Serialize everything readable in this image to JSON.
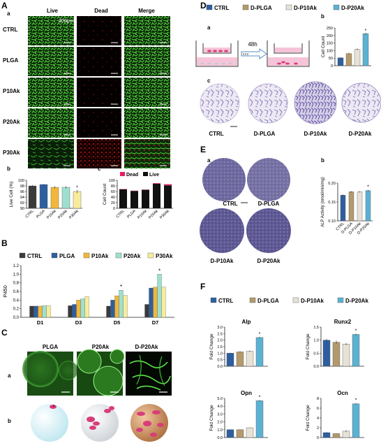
{
  "colors": {
    "ctrl": "#2d5fa0",
    "plga": "#b39a6c",
    "p10ak": "#e6e2d6",
    "p20ak": "#5bb2d3",
    "p20ak_b": "#9ee0d0",
    "p30ak": "#f7ec9c",
    "p10ak_b": "#f2b73a",
    "ctrl_b": "#3a3a3a",
    "live": "#111111",
    "dead": "#e91e63"
  },
  "panels": {
    "A": {
      "letter": "A",
      "sub_a": "a",
      "sub_b": "b",
      "sub_c": "c",
      "columns": [
        "Live",
        "Dead",
        "Merge"
      ],
      "rows": [
        "CTRL",
        "PLGA",
        "P10Ak",
        "P20Ak",
        "P30Ak"
      ],
      "scale_label": "200μm"
    },
    "B": {
      "letter": "B"
    },
    "C": {
      "letter": "C",
      "sub_a": "a",
      "sub_b": "b",
      "columns": [
        "PLGA",
        "P20Ak",
        "D-P20Ak"
      ]
    },
    "D": {
      "letter": "D",
      "sub_a": "a",
      "sub_b": "b",
      "sub_c": "c",
      "time_label": "48h",
      "legend": [
        "CTRL",
        "D-PLGA",
        "D-P10Ak",
        "D-P20Ak"
      ],
      "stain_labels": [
        "CTRL",
        "D-PLGA",
        "D-P10Ak",
        "D-P20Ak"
      ]
    },
    "E": {
      "letter": "E",
      "sub_a": "a",
      "sub_b": "b",
      "stain_labels": [
        "CTRL",
        "D-PLGA",
        "D-P10Ak",
        "D-P20Ak"
      ]
    },
    "F": {
      "letter": "F",
      "legend": [
        "CTRL",
        "D-PLGA",
        "D-P10Ak",
        "D-P20Ak"
      ]
    }
  },
  "chart_data": [
    {
      "id": "A-b",
      "type": "bar",
      "categories": [
        "CTRL",
        "PLGA",
        "P10Ak",
        "P20Ak",
        "P30Ak"
      ],
      "values": [
        98,
        98.5,
        97.5,
        97.5,
        96
      ],
      "errors": [
        0.3,
        0.2,
        0.4,
        0.4,
        0.6
      ],
      "ylabel": "Live Cell (%)",
      "ylim": [
        90,
        100
      ],
      "yticks": [
        90,
        92,
        94,
        96,
        98,
        100
      ],
      "significance": [
        "",
        "",
        "",
        "",
        "*"
      ]
    },
    {
      "id": "A-c",
      "type": "bar",
      "stacked": true,
      "categories": [
        "CTRL",
        "PLGA",
        "P10Ak",
        "P20Ak",
        "P30Ak"
      ],
      "series": [
        {
          "name": "Live",
          "values": [
            68,
            62,
            66,
            88,
            82
          ]
        },
        {
          "name": "Dead",
          "values": [
            1,
            1,
            1,
            2,
            4
          ]
        }
      ],
      "ylabel": "Cell Count",
      "ylim": [
        0,
        100
      ],
      "yticks": [
        0,
        20,
        40,
        60,
        80,
        100
      ],
      "legend": [
        "Dead",
        "Live"
      ]
    },
    {
      "id": "B",
      "type": "bar",
      "categories": [
        "D1",
        "D3",
        "D5",
        "D7"
      ],
      "series": [
        {
          "name": "CTRL",
          "values": [
            0.26,
            0.27,
            0.26,
            0.3
          ]
        },
        {
          "name": "PLGA",
          "values": [
            0.26,
            0.3,
            0.4,
            0.68
          ]
        },
        {
          "name": "P10Ak",
          "values": [
            0.26,
            0.4,
            0.5,
            0.7
          ]
        },
        {
          "name": "P20Ak",
          "values": [
            0.27,
            0.43,
            0.63,
            1.0
          ]
        },
        {
          "name": "P30Ak",
          "values": [
            0.27,
            0.48,
            0.51,
            0.7
          ]
        }
      ],
      "ylabel": "P450",
      "ylim": [
        0,
        1.2
      ],
      "yticks": [
        0.0,
        0.2,
        0.4,
        0.6,
        0.8,
        1.0,
        1.2
      ],
      "significance": {
        "D5": "*",
        "D7": "*"
      }
    },
    {
      "id": "D-b",
      "type": "bar",
      "categories": [
        "CTRL",
        "D-PLGA",
        "D-P10Ak",
        "D-P20Ak"
      ],
      "values": [
        52,
        80,
        108,
        212
      ],
      "errors": [
        4,
        5,
        6,
        6
      ],
      "ylabel": "Cell Count",
      "ylim": [
        0,
        250
      ],
      "yticks": [
        0,
        50,
        100,
        150,
        200,
        250
      ],
      "significance": [
        "",
        "",
        "",
        "*"
      ]
    },
    {
      "id": "E-b",
      "type": "bar",
      "categories": [
        "CTRL",
        "D-PLGA",
        "D-P10Ak",
        "D-P20Ak"
      ],
      "values": [
        0.168,
        0.177,
        0.177,
        0.18
      ],
      "errors": [
        0.002,
        0.002,
        0.002,
        0.002
      ],
      "ylabel": "ALP Activity (nmol/min/mg)",
      "ylim": [
        0.1,
        0.2
      ],
      "yticks": [
        0.1,
        0.15,
        0.2
      ],
      "significance": [
        "",
        "",
        "",
        "*"
      ]
    },
    {
      "id": "F-alp",
      "type": "bar",
      "title": "Alp",
      "categories": [
        "CTRL",
        "D-PLGA",
        "D-P10Ak",
        "D-P20Ak"
      ],
      "values": [
        1.0,
        1.1,
        1.15,
        2.2
      ],
      "errors": [
        0.03,
        0.05,
        0.05,
        0.05
      ],
      "ylabel": "Fold Change",
      "ylim": [
        0,
        3.0
      ],
      "yticks": [
        0.0,
        0.5,
        1.0,
        1.5,
        2.0,
        2.5,
        3.0
      ],
      "significance": [
        "",
        "",
        "",
        "*"
      ]
    },
    {
      "id": "F-runx2",
      "type": "bar",
      "title": "Runx2",
      "categories": [
        "CTRL",
        "D-PLGA",
        "D-P10Ak",
        "D-P20Ak"
      ],
      "values": [
        1.0,
        0.92,
        0.85,
        1.22
      ],
      "errors": [
        0.05,
        0.06,
        0.04,
        0.03
      ],
      "ylabel": "Fold Change",
      "ylim": [
        0,
        1.5
      ],
      "yticks": [
        0.0,
        0.5,
        1.0,
        1.5
      ],
      "significance": [
        "",
        "",
        "",
        "*"
      ]
    },
    {
      "id": "F-opn",
      "type": "bar",
      "title": "Opn",
      "categories": [
        "CTRL",
        "D-PLGA",
        "D-P10Ak",
        "D-P20Ak"
      ],
      "values": [
        1.0,
        1.0,
        1.25,
        4.7
      ],
      "errors": [
        0.04,
        0.04,
        0.05,
        0.08
      ],
      "ylabel": "Fold Change",
      "ylim": [
        0,
        5.0
      ],
      "yticks": [
        0.0,
        1.0,
        2.0,
        3.0,
        4.0,
        5.0
      ],
      "significance": [
        "",
        "",
        "",
        "*"
      ]
    },
    {
      "id": "F-ocn",
      "type": "bar",
      "title": "Ocn",
      "categories": [
        "CTRL",
        "D-PLGA",
        "D-P10Ak",
        "D-P20Ak"
      ],
      "values": [
        1.0,
        0.8,
        1.3,
        6.9
      ],
      "errors": [
        0.1,
        0.05,
        0.2,
        0.15
      ],
      "ylabel": "Fold Change",
      "ylim": [
        0,
        8
      ],
      "yticks": [
        0,
        2,
        4,
        6,
        8
      ],
      "significance": [
        "",
        "",
        "",
        "*"
      ]
    }
  ]
}
